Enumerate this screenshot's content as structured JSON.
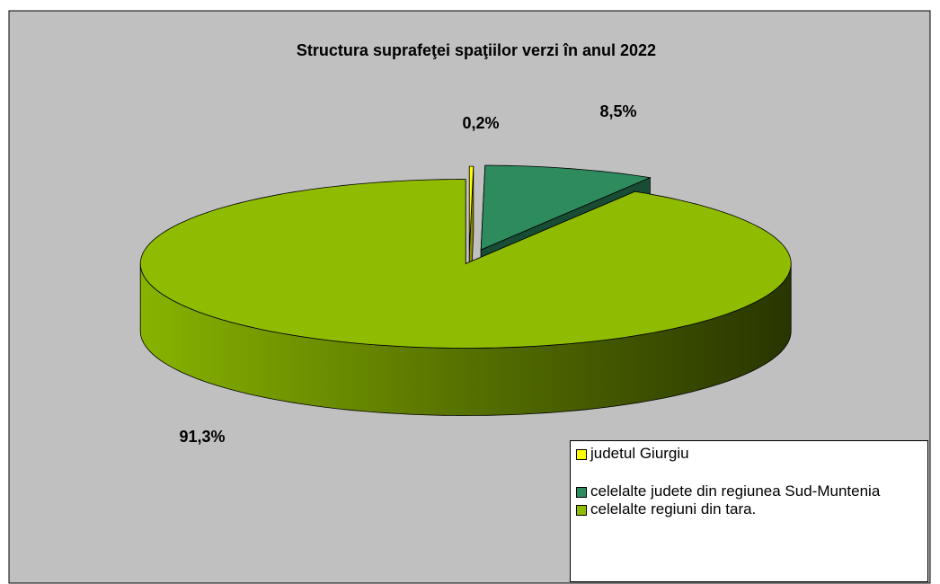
{
  "chart_data": {
    "type": "pie3d",
    "title": "Structura suprafeţei spaţiilor verzi în anul 2022",
    "categories": [
      "judetul Giurgiu",
      "celelalte judete din regiunea Sud-Muntenia",
      "celelalte regiuni din tara."
    ],
    "values": [
      0.2,
      8.5,
      91.3
    ],
    "value_labels": [
      "0,2%",
      "8,5%",
      "91,3%"
    ],
    "colors": [
      "#ffff00",
      "#2e8b5e",
      "#8fbc00"
    ],
    "legend": "bottom-right"
  }
}
